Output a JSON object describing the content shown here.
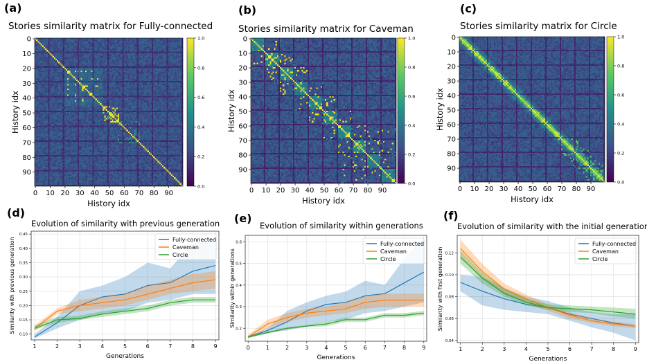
{
  "heatmaps": [
    {
      "panel_label": "(a)",
      "title": "Stories similarity matrix for Fully-connected",
      "xlabel": "History idx",
      "ylabel": "History idx",
      "pattern": "full",
      "xticks": [
        "0",
        "10",
        "20",
        "30",
        "40",
        "50",
        "60",
        "70",
        "80",
        "90"
      ],
      "yticks": [
        "0",
        "10",
        "20",
        "30",
        "40",
        "50",
        "60",
        "70",
        "80",
        "90"
      ],
      "colorbar_ticks": [
        "1.0",
        "0.8",
        "0.6",
        "0.4",
        "0.2",
        "0.0"
      ]
    },
    {
      "panel_label": "(b)",
      "title": "Stories similarity matrix for Caveman",
      "xlabel": "History idx",
      "ylabel": "History idx",
      "pattern": "caveman",
      "xticks": [
        "0",
        "10",
        "20",
        "30",
        "40",
        "50",
        "60",
        "70",
        "80",
        "90"
      ],
      "yticks": [
        "0",
        "10",
        "20",
        "30",
        "40",
        "50",
        "60",
        "70",
        "80",
        "90"
      ],
      "colorbar_ticks": [
        "1.0",
        "0.8",
        "0.6",
        "0.4",
        "0.2",
        "0.0"
      ]
    },
    {
      "panel_label": "(c)",
      "title": "Stories similarity matrix for Circle",
      "xlabel": "History idx",
      "ylabel": "History idx",
      "pattern": "circle",
      "xticks": [
        "0",
        "10",
        "20",
        "30",
        "40",
        "50",
        "60",
        "70",
        "80",
        "90"
      ],
      "yticks": [
        "0",
        "10",
        "20",
        "30",
        "40",
        "50",
        "60",
        "70",
        "80",
        "90"
      ],
      "colorbar_ticks": [
        "1.0",
        "0.8",
        "0.6",
        "0.4",
        "0.2",
        "0.0"
      ]
    }
  ],
  "colors": {
    "Fully-connected": "#1f77b4",
    "Caveman": "#ff7f0e",
    "Circle": "#2ca02c"
  },
  "chart_data": [
    {
      "type": "line",
      "panel_label": "(d)",
      "title": "Evolution of similarity with previous generation",
      "xlabel": "Generations",
      "ylabel": "Similarity with previous generation",
      "xlim": [
        0.85,
        9.15
      ],
      "ylim": [
        0.08,
        0.46
      ],
      "xticks": [
        1,
        2,
        3,
        4,
        5,
        6,
        7,
        8,
        9
      ],
      "yticks": [
        0.1,
        0.15,
        0.2,
        0.25,
        0.3,
        0.35,
        0.4,
        0.45
      ],
      "ytick_labels": [
        "0.10",
        "0.15",
        "0.20",
        "0.25",
        "0.30",
        "0.35",
        "0.40",
        "0.45"
      ],
      "legend": "top-right",
      "x": [
        1,
        2,
        3,
        4,
        5,
        6,
        7,
        8,
        9
      ],
      "series": [
        {
          "name": "Fully-connected",
          "values": [
            0.09,
            0.14,
            0.2,
            0.23,
            0.24,
            0.27,
            0.28,
            0.32,
            0.34
          ],
          "lower": [
            0.085,
            0.12,
            0.15,
            0.17,
            0.18,
            0.21,
            0.22,
            0.24,
            0.24
          ],
          "upper": [
            0.1,
            0.16,
            0.25,
            0.27,
            0.3,
            0.35,
            0.33,
            0.42,
            0.43
          ]
        },
        {
          "name": "Caveman",
          "values": [
            0.12,
            0.18,
            0.2,
            0.21,
            0.22,
            0.24,
            0.26,
            0.28,
            0.29
          ],
          "lower": [
            0.11,
            0.17,
            0.18,
            0.19,
            0.2,
            0.22,
            0.24,
            0.25,
            0.26
          ],
          "upper": [
            0.13,
            0.19,
            0.22,
            0.23,
            0.24,
            0.27,
            0.29,
            0.31,
            0.32
          ]
        },
        {
          "name": "Circle",
          "values": [
            0.12,
            0.15,
            0.155,
            0.17,
            0.18,
            0.19,
            0.21,
            0.22,
            0.22
          ],
          "lower": [
            0.115,
            0.14,
            0.15,
            0.16,
            0.17,
            0.18,
            0.2,
            0.21,
            0.21
          ],
          "upper": [
            0.13,
            0.16,
            0.165,
            0.18,
            0.19,
            0.2,
            0.22,
            0.23,
            0.23
          ]
        }
      ]
    },
    {
      "type": "line",
      "panel_label": "(e)",
      "title": "Evolution of similarity within generations",
      "xlabel": "Generations",
      "ylabel": "Similarity within generations",
      "xlim": [
        -0.15,
        9.15
      ],
      "ylim": [
        0.14,
        0.63
      ],
      "xticks": [
        0,
        1,
        2,
        3,
        4,
        5,
        6,
        7,
        8,
        9
      ],
      "yticks": [
        0.2,
        0.3,
        0.4,
        0.5,
        0.6
      ],
      "ytick_labels": [
        "0.2",
        "0.3",
        "0.4",
        "0.5",
        "0.6"
      ],
      "legend": "top-right",
      "x": [
        0,
        1,
        2,
        3,
        4,
        5,
        6,
        7,
        8,
        9
      ],
      "series": [
        {
          "name": "Fully-connected",
          "values": [
            0.16,
            0.19,
            0.23,
            0.28,
            0.31,
            0.32,
            0.35,
            0.36,
            0.41,
            0.46
          ],
          "lower": [
            0.155,
            0.18,
            0.19,
            0.21,
            0.23,
            0.24,
            0.27,
            0.28,
            0.3,
            0.32
          ],
          "upper": [
            0.165,
            0.2,
            0.28,
            0.32,
            0.35,
            0.37,
            0.42,
            0.4,
            0.52,
            0.62
          ]
        },
        {
          "name": "Caveman",
          "values": [
            0.16,
            0.22,
            0.25,
            0.27,
            0.28,
            0.29,
            0.32,
            0.33,
            0.33,
            0.33
          ],
          "lower": [
            0.15,
            0.2,
            0.23,
            0.25,
            0.26,
            0.27,
            0.29,
            0.3,
            0.3,
            0.3
          ],
          "upper": [
            0.17,
            0.24,
            0.27,
            0.29,
            0.3,
            0.32,
            0.35,
            0.36,
            0.36,
            0.36
          ]
        },
        {
          "name": "Circle",
          "values": [
            0.16,
            0.18,
            0.2,
            0.21,
            0.22,
            0.24,
            0.24,
            0.26,
            0.26,
            0.27
          ],
          "lower": [
            0.155,
            0.175,
            0.195,
            0.205,
            0.21,
            0.23,
            0.23,
            0.25,
            0.25,
            0.26
          ],
          "upper": [
            0.165,
            0.185,
            0.205,
            0.215,
            0.23,
            0.25,
            0.25,
            0.27,
            0.27,
            0.28
          ]
        }
      ]
    },
    {
      "type": "line",
      "panel_label": "(f)",
      "title": "Evolution of similarity with the initial generation",
      "xlabel": "Generations",
      "ylabel": "Similarity with first generation",
      "xlim": [
        0.85,
        9.15
      ],
      "ylim": [
        0.038,
        0.136
      ],
      "xticks": [
        1,
        2,
        3,
        4,
        5,
        6,
        7,
        8,
        9
      ],
      "yticks": [
        0.04,
        0.06,
        0.08,
        0.1,
        0.12
      ],
      "ytick_labels": [
        "0.04",
        "0.06",
        "0.08",
        "0.10",
        "0.12"
      ],
      "legend": "top-right",
      "x": [
        1,
        2,
        3,
        4,
        5,
        6,
        7,
        8,
        9
      ],
      "series": [
        {
          "name": "Fully-connected",
          "values": [
            0.093,
            0.085,
            0.078,
            0.073,
            0.07,
            0.064,
            0.06,
            0.056,
            0.053
          ],
          "lower": [
            0.085,
            0.072,
            0.068,
            0.066,
            0.064,
            0.058,
            0.052,
            0.047,
            0.04
          ],
          "upper": [
            0.1,
            0.098,
            0.088,
            0.08,
            0.076,
            0.07,
            0.066,
            0.064,
            0.064
          ]
        },
        {
          "name": "Caveman",
          "values": [
            0.124,
            0.103,
            0.087,
            0.078,
            0.07,
            0.063,
            0.058,
            0.055,
            0.053
          ],
          "lower": [
            0.116,
            0.096,
            0.082,
            0.074,
            0.067,
            0.06,
            0.056,
            0.053,
            0.051
          ],
          "upper": [
            0.132,
            0.11,
            0.092,
            0.082,
            0.073,
            0.066,
            0.06,
            0.057,
            0.055
          ]
        },
        {
          "name": "Circle",
          "values": [
            0.116,
            0.097,
            0.083,
            0.075,
            0.07,
            0.069,
            0.068,
            0.066,
            0.064
          ],
          "lower": [
            0.11,
            0.092,
            0.08,
            0.072,
            0.068,
            0.066,
            0.065,
            0.062,
            0.06
          ],
          "upper": [
            0.122,
            0.102,
            0.087,
            0.078,
            0.073,
            0.072,
            0.071,
            0.07,
            0.069
          ]
        }
      ]
    }
  ]
}
